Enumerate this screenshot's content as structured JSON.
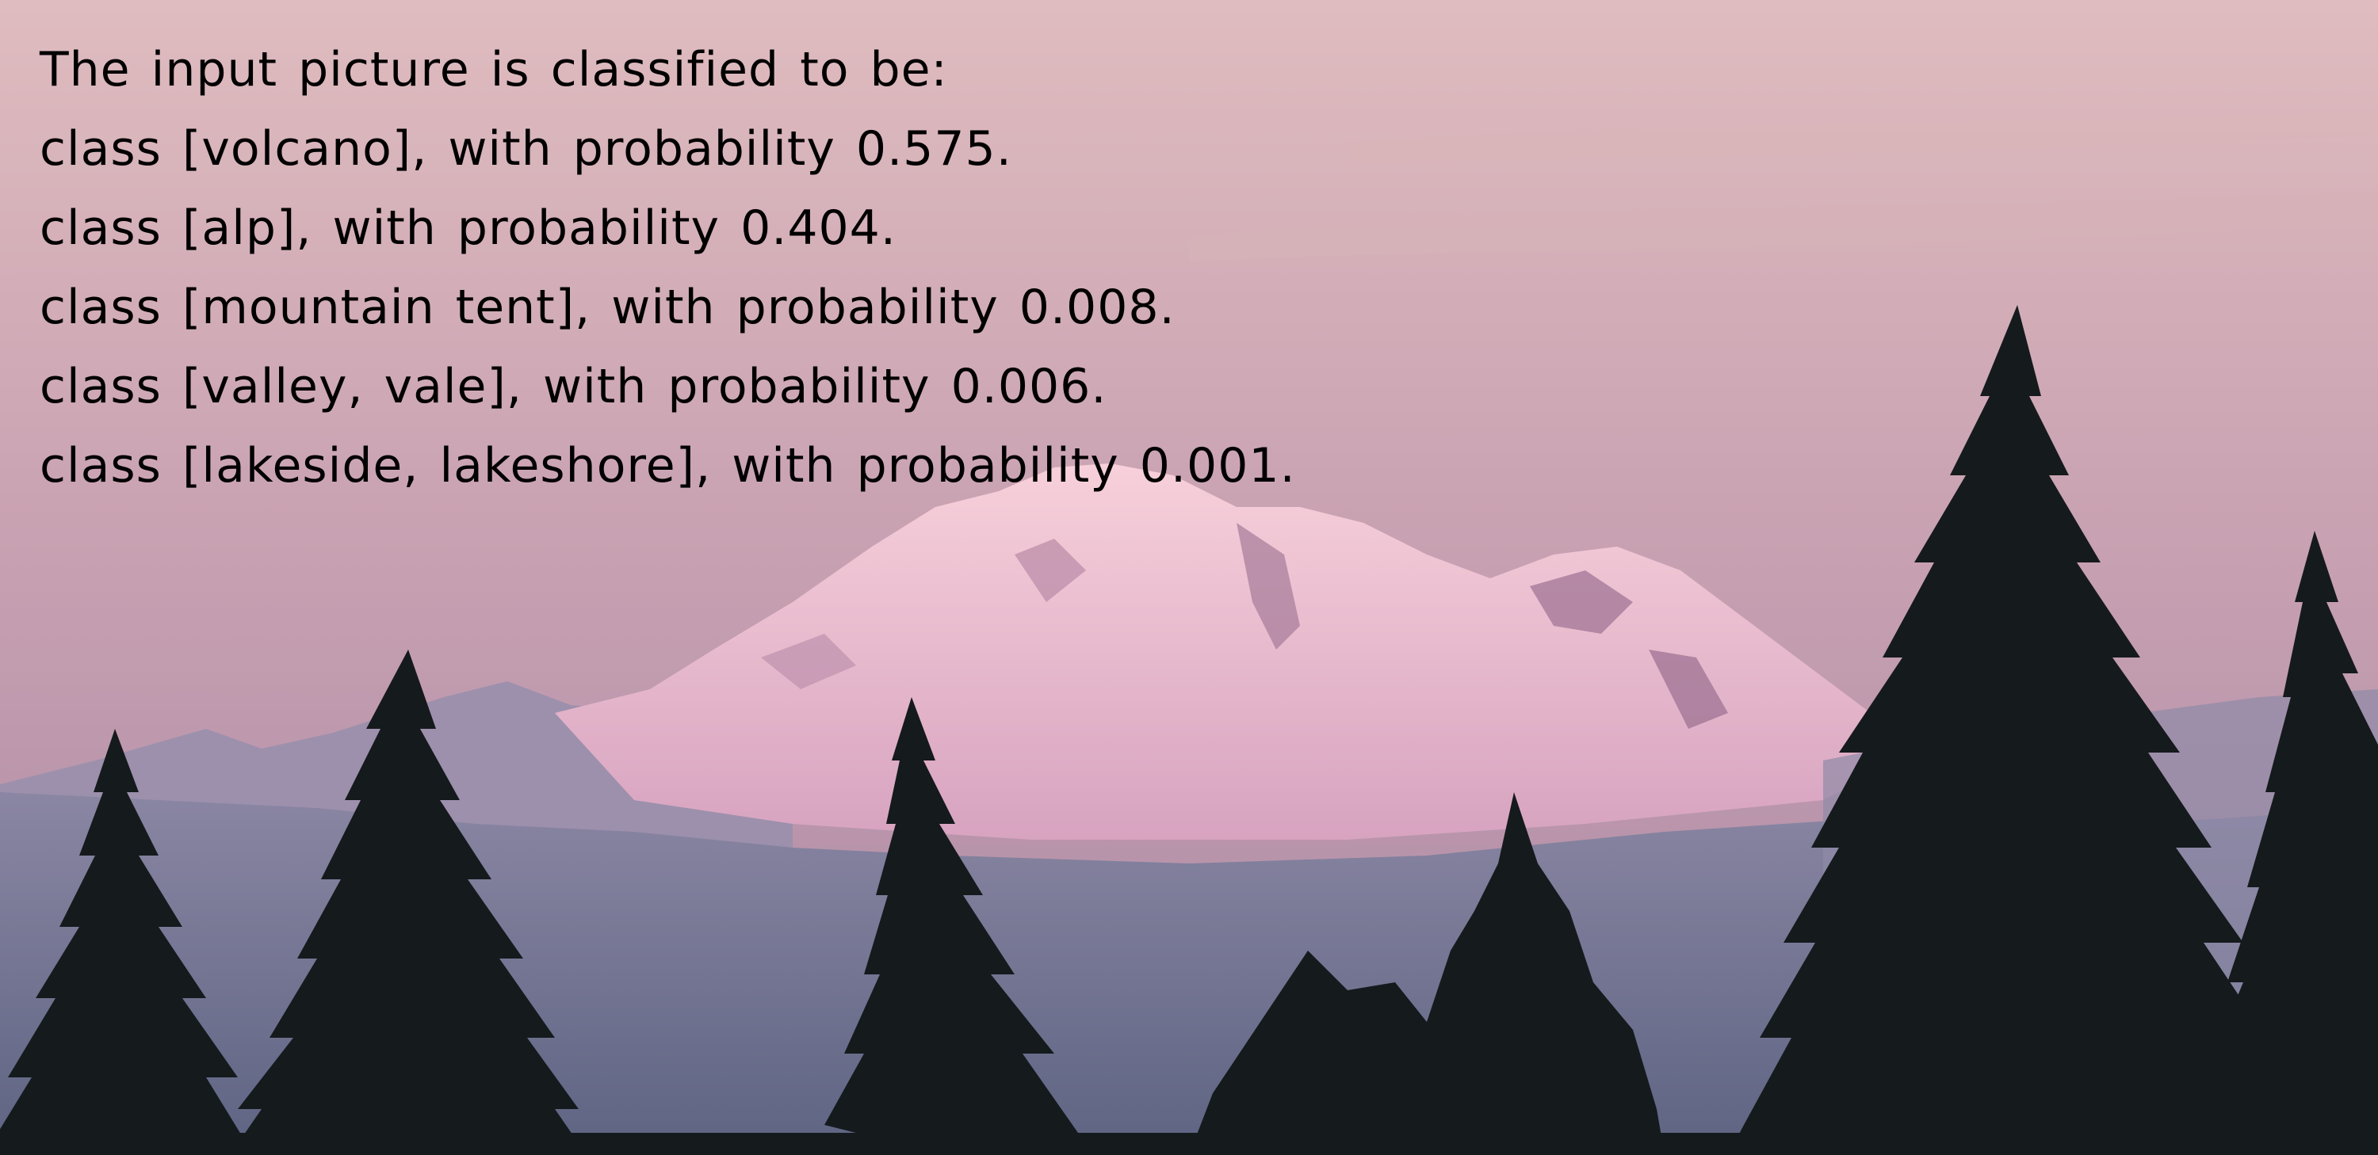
{
  "header": "The input picture is classified to be:",
  "predictions": [
    {
      "text": "class [volcano], with probability 0.575.",
      "label": "volcano",
      "probability": 0.575
    },
    {
      "text": "class [alp], with probability 0.404.",
      "label": "alp",
      "probability": 0.404
    },
    {
      "text": "class [mountain tent], with probability 0.008.",
      "label": "mountain tent",
      "probability": 0.008
    },
    {
      "text": "class [valley, vale], with probability 0.006.",
      "label": "valley, vale",
      "probability": 0.006
    },
    {
      "text": "class [lakeside, lakeshore], with probability 0.001.",
      "label": "lakeside, lakeshore",
      "probability": 0.001
    }
  ],
  "colors": {
    "sky_top": "#dcb9bd",
    "sky_bottom": "#b18aa5",
    "snow": "#f1bfcf",
    "ridge": "#8e8aa6",
    "haze": "#6e7391",
    "trees": "#151a1d",
    "text": "#000000"
  }
}
